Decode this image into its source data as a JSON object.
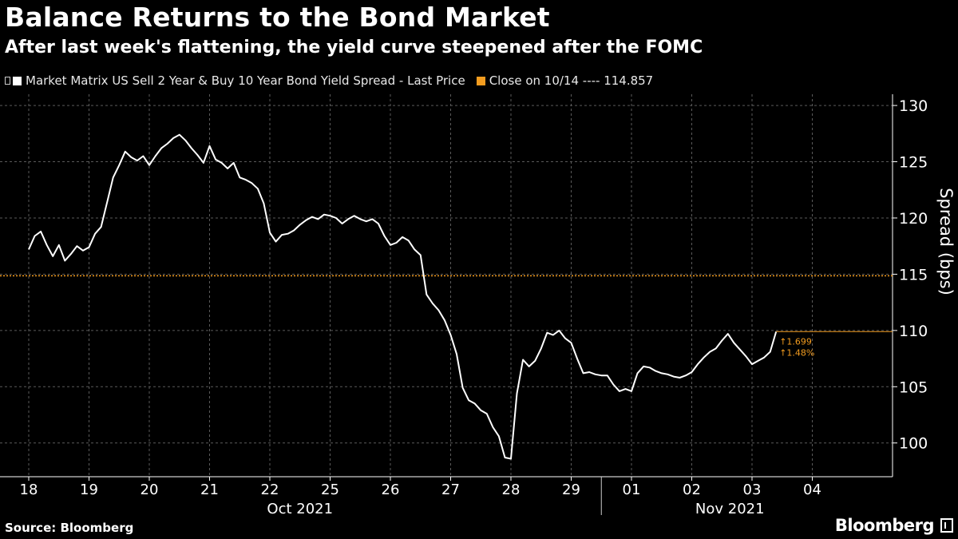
{
  "header": {
    "title": "Balance Returns to the Bond Market",
    "subtitle": "After last week's flattening, the yield curve steepened after the FOMC"
  },
  "legend": {
    "series_label": "Market Matrix US Sell 2 Year & Buy 10 Year Bond Yield Spread - Last Price",
    "close_label": "Close on 10/14 ---- 114.857"
  },
  "footer": {
    "source": "Source: Bloomberg",
    "logo": "Bloomberg"
  },
  "colors": {
    "background": "#000000",
    "series": "#ffffff",
    "reference": "#f39c1f",
    "grid": "#5a5a5a"
  },
  "chart_data": {
    "type": "line",
    "title": "Balance Returns to the Bond Market",
    "subtitle": "After last week's flattening, the yield curve steepened after the FOMC",
    "ylabel": "Spread (bps)",
    "xlabel": "",
    "ylim": [
      97,
      131
    ],
    "yticks": [
      100,
      105,
      110,
      115,
      120,
      125,
      130
    ],
    "xticks": [
      "18",
      "19",
      "20",
      "21",
      "22",
      "25",
      "26",
      "27",
      "28",
      "29",
      "01",
      "02",
      "03",
      "04"
    ],
    "month_labels": [
      "Oct 2021",
      "Nov 2021"
    ],
    "grid": true,
    "series": [
      {
        "name": "Market Matrix US Sell 2 Year & Buy 10 Year Bond Yield Spread - Last Price",
        "color": "#ffffff",
        "x": [
          0,
          0.1,
          0.2,
          0.3,
          0.4,
          0.5,
          0.6,
          0.7,
          0.8,
          0.9,
          1.0,
          1.1,
          1.2,
          1.3,
          1.4,
          1.5,
          1.6,
          1.7,
          1.8,
          1.9,
          2.0,
          2.1,
          2.2,
          2.3,
          2.4,
          2.5,
          2.6,
          2.7,
          2.8,
          2.9,
          3.0,
          3.1,
          3.2,
          3.3,
          3.4,
          3.5,
          3.6,
          3.7,
          3.8,
          3.9,
          4.0,
          4.1,
          4.2,
          4.3,
          4.4,
          4.5,
          4.6,
          4.7,
          4.8,
          4.9,
          5.0,
          5.1,
          5.2,
          5.3,
          5.4,
          5.5,
          5.6,
          5.7,
          5.8,
          5.9,
          6.0,
          6.1,
          6.2,
          6.3,
          6.4,
          6.5,
          6.6,
          6.7,
          6.8,
          6.9,
          7.0,
          7.1,
          7.2,
          7.3,
          7.4,
          7.5,
          7.6,
          7.7,
          7.8,
          7.9,
          8.0,
          8.1,
          8.2,
          8.3,
          8.4,
          8.5,
          8.6,
          8.7,
          8.8,
          8.9,
          9.0,
          9.1,
          9.2,
          9.3,
          9.4,
          9.5,
          9.6,
          9.7,
          9.8,
          9.9,
          10.0,
          10.1,
          10.2,
          10.3,
          10.4,
          10.5,
          10.6,
          10.7,
          10.8,
          10.9,
          11.0,
          11.1,
          11.2,
          11.3,
          11.4,
          11.5,
          11.6,
          11.7,
          11.8,
          11.9,
          12.0,
          12.1,
          12.2,
          12.3,
          12.4,
          12.5,
          12.6,
          12.7,
          12.8,
          12.9,
          13.0
        ],
        "values": [
          117.2,
          118.4,
          118.8,
          117.6,
          116.6,
          117.6,
          116.2,
          116.8,
          117.5,
          117.1,
          117.4,
          118.6,
          119.2,
          121.4,
          123.6,
          124.7,
          125.9,
          125.4,
          125.1,
          125.5,
          124.7,
          125.5,
          126.2,
          126.6,
          127.1,
          127.4,
          126.9,
          126.2,
          125.6,
          124.9,
          126.4,
          125.2,
          124.9,
          124.4,
          124.9,
          123.6,
          123.4,
          123.1,
          122.6,
          121.3,
          118.7,
          117.9,
          118.5,
          118.6,
          118.9,
          119.4,
          119.8,
          120.1,
          119.9,
          120.3,
          120.2,
          120.0,
          119.5,
          119.9,
          120.2,
          119.9,
          119.7,
          119.9,
          119.5,
          118.4,
          117.6,
          117.8,
          118.3,
          118.0,
          117.2,
          116.7,
          113.2,
          112.4,
          111.8,
          110.9,
          109.6,
          107.9,
          104.9,
          103.8,
          103.5,
          102.9,
          102.6,
          101.4,
          100.6,
          98.7,
          98.6,
          104.4,
          107.4,
          106.8,
          107.3,
          108.4,
          109.8,
          109.6,
          110.0,
          109.3,
          108.9,
          107.5,
          106.2,
          106.3,
          106.1,
          106.0,
          106.0,
          105.2,
          104.6,
          104.8,
          104.6,
          106.2,
          106.8,
          106.7,
          106.4,
          106.2,
          106.1,
          105.9,
          105.8,
          106.0,
          106.3,
          107.0,
          107.6,
          108.1,
          108.4,
          109.1,
          109.7,
          108.9,
          108.3,
          107.7,
          107.0,
          107.3,
          107.6,
          108.1,
          109.9,
          113.2,
          113.2,
          113.2,
          113.2,
          113.2,
          113.2
        ]
      }
    ],
    "reference_line": {
      "label": "Close on 10/14",
      "value": 114.857,
      "color": "#f39c1f"
    },
    "annotations": [
      "↑1.699",
      "↑1.48%"
    ]
  }
}
